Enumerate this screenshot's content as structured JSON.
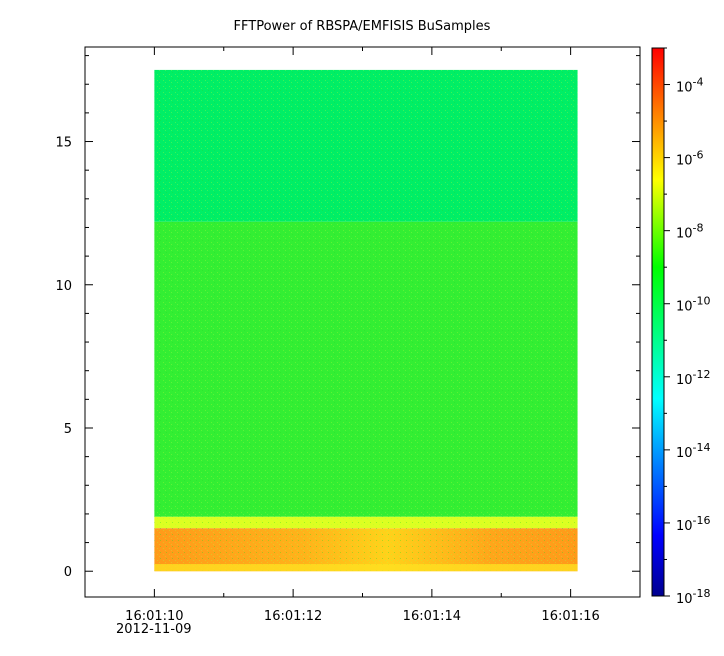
{
  "chart_data": {
    "type": "heatmap",
    "title": "FFTPower of RBSPA/EMFISIS  BuSamples",
    "x_ticks": [
      "16:01:10",
      "16:01:12",
      "16:01:14",
      "16:01:16"
    ],
    "x_date_label": "2012-11-09",
    "x_range_seconds": [
      9.0,
      17.0
    ],
    "x_data_range_seconds": [
      10.0,
      16.1
    ],
    "y_ticks": [
      0,
      5,
      10,
      15
    ],
    "ylim": [
      -0.9,
      18.3
    ],
    "y_data_range": [
      0,
      17.5
    ],
    "colorbar": {
      "scale": "log",
      "range": [
        1e-18,
        0.001
      ],
      "tick_labels": [
        {
          "base": "10",
          "exp": "-4"
        },
        {
          "base": "10",
          "exp": "-6"
        },
        {
          "base": "10",
          "exp": "-8"
        },
        {
          "base": "10",
          "exp": "-10"
        },
        {
          "base": "10",
          "exp": "-12"
        },
        {
          "base": "10",
          "exp": "-14"
        },
        {
          "base": "10",
          "exp": "-16"
        },
        {
          "base": "10",
          "exp": "-18"
        }
      ],
      "tick_values_log10": [
        -4,
        -6,
        -8,
        -10,
        -12,
        -14,
        -16,
        -18
      ],
      "colors": [
        "#00008f",
        "#0000ff",
        "#0080ff",
        "#00ffff",
        "#00ff7f",
        "#00ff00",
        "#80ff00",
        "#ffff00",
        "#ff8000",
        "#ff0000"
      ]
    },
    "bands": [
      {
        "y_from": 12.2,
        "y_to": 17.5,
        "approx_power": "1e-12"
      },
      {
        "y_from": 1.9,
        "y_to": 12.2,
        "approx_power": "1e-10"
      },
      {
        "y_from": 1.5,
        "y_to": 1.9,
        "approx_power": "1e-8"
      },
      {
        "y_from": 0.0,
        "y_to": 1.5,
        "approx_power": "1e-7"
      }
    ]
  }
}
